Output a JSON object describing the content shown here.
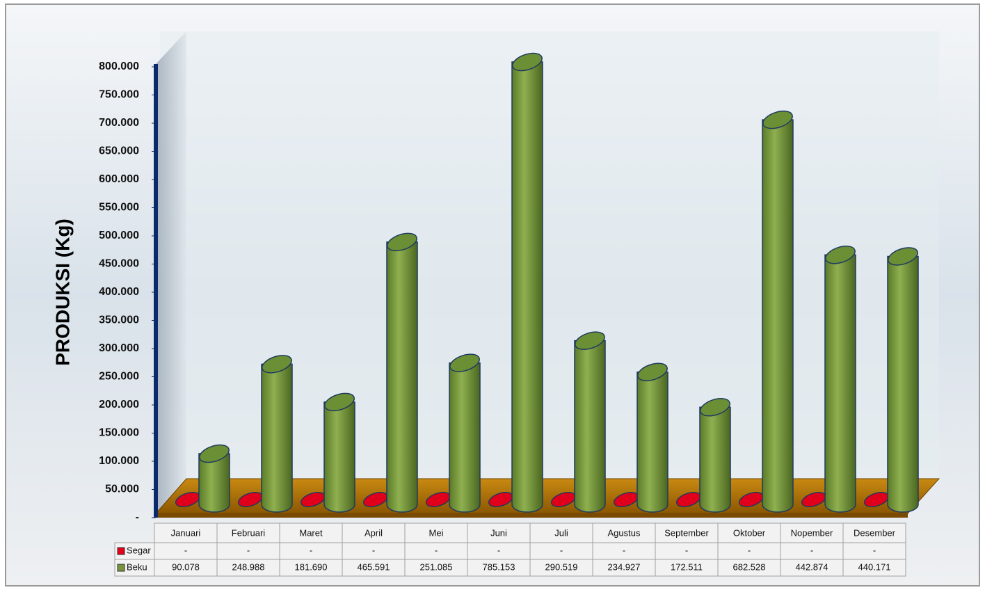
{
  "chart_data": {
    "type": "bar3d",
    "y_label": "PRODUKSI (Kg)",
    "categories": [
      "Januari",
      "Februari",
      "Maret",
      "April",
      "Mei",
      "Juni",
      "Juli",
      "Agustus",
      "September",
      "Oktober",
      "Nopember",
      "Desember"
    ],
    "series": [
      {
        "name": "Segar",
        "color": "#e0001b",
        "values": [
          0,
          0,
          0,
          0,
          0,
          0,
          0,
          0,
          0,
          0,
          0,
          0
        ],
        "value_labels": [
          "-",
          "-",
          "-",
          "-",
          "-",
          "-",
          "-",
          "-",
          "-",
          "-",
          "-",
          "-"
        ]
      },
      {
        "name": "Beku",
        "color": "#77933c",
        "values": [
          90078,
          248988,
          181690,
          465591,
          251085,
          785153,
          290519,
          234927,
          172511,
          682528,
          442874,
          440171
        ],
        "value_labels": [
          "90.078",
          "248.988",
          "181.690",
          "465.591",
          "251.085",
          "785.153",
          "290.519",
          "234.927",
          "172.511",
          "682.528",
          "442.874",
          "440.171"
        ]
      }
    ],
    "ylim": [
      0,
      800000
    ],
    "yticks": [
      {
        "value": 0,
        "label": "-"
      },
      {
        "value": 50000,
        "label": "50.000"
      },
      {
        "value": 100000,
        "label": "100.000"
      },
      {
        "value": 150000,
        "label": "150.000"
      },
      {
        "value": 200000,
        "label": "200.000"
      },
      {
        "value": 250000,
        "label": "250.000"
      },
      {
        "value": 300000,
        "label": "300.000"
      },
      {
        "value": 350000,
        "label": "350.000"
      },
      {
        "value": 400000,
        "label": "400.000"
      },
      {
        "value": 450000,
        "label": "450.000"
      },
      {
        "value": 500000,
        "label": "500.000"
      },
      {
        "value": 550000,
        "label": "550.000"
      },
      {
        "value": 600000,
        "label": "600.000"
      },
      {
        "value": 650000,
        "label": "650.000"
      },
      {
        "value": 700000,
        "label": "700.000"
      },
      {
        "value": 750000,
        "label": "750.000"
      },
      {
        "value": 800000,
        "label": "800.000"
      }
    ]
  }
}
